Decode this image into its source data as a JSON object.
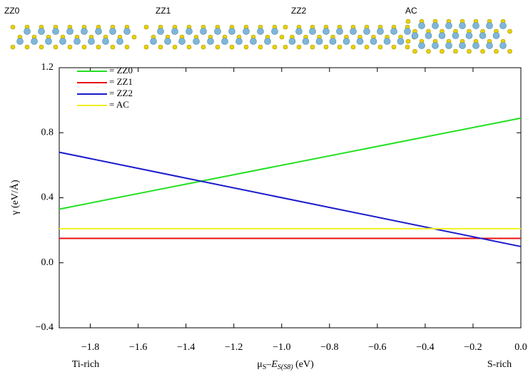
{
  "chart_data": {
    "type": "line",
    "structure_labels": [
      "ZZ0",
      "ZZ1",
      "ZZ2",
      "AC"
    ],
    "ylabel": "γ (eV/Å)",
    "xlabel": [
      "μ",
      "S",
      "–",
      "E",
      "S(S8)",
      " (eV)"
    ],
    "annotations": [
      "Ti-rich",
      "S-rich"
    ],
    "x": [
      -1.93,
      0
    ],
    "series": [
      {
        "name": "= ZZ0",
        "color": "#22e022",
        "values": [
          0.33,
          0.89
        ]
      },
      {
        "name": "= ZZ1",
        "color": "#e81010",
        "values": [
          0.15,
          0.15
        ]
      },
      {
        "name": "= ZZ2",
        "color": "#1a1acc",
        "values": [
          0.68,
          0.1
        ]
      },
      {
        "name": "= AC",
        "color": "#f0f020",
        "values": [
          0.21,
          0.21
        ]
      }
    ],
    "xlim": [
      -1.93,
      0
    ],
    "ylim": [
      -0.4,
      1.2
    ],
    "xticks": [
      {
        "value": -1.8,
        "label": "−1.8"
      },
      {
        "value": -1.6,
        "label": "−1.6"
      },
      {
        "value": -1.4,
        "label": "−1.4"
      },
      {
        "value": -1.2,
        "label": "−1.2"
      },
      {
        "value": -1.0,
        "label": "−1.0"
      },
      {
        "value": -0.8,
        "label": "−0.8"
      },
      {
        "value": -0.6,
        "label": "−0.6"
      },
      {
        "value": -0.4,
        "label": "−0.4"
      },
      {
        "value": -0.2,
        "label": "−0.2"
      },
      {
        "value": 0,
        "label": "0.0"
      }
    ],
    "yticks": [
      {
        "value": -0.4,
        "label": "−0.4"
      },
      {
        "value": 0,
        "label": "0.0"
      },
      0.4,
      0.8,
      1.2
    ]
  }
}
